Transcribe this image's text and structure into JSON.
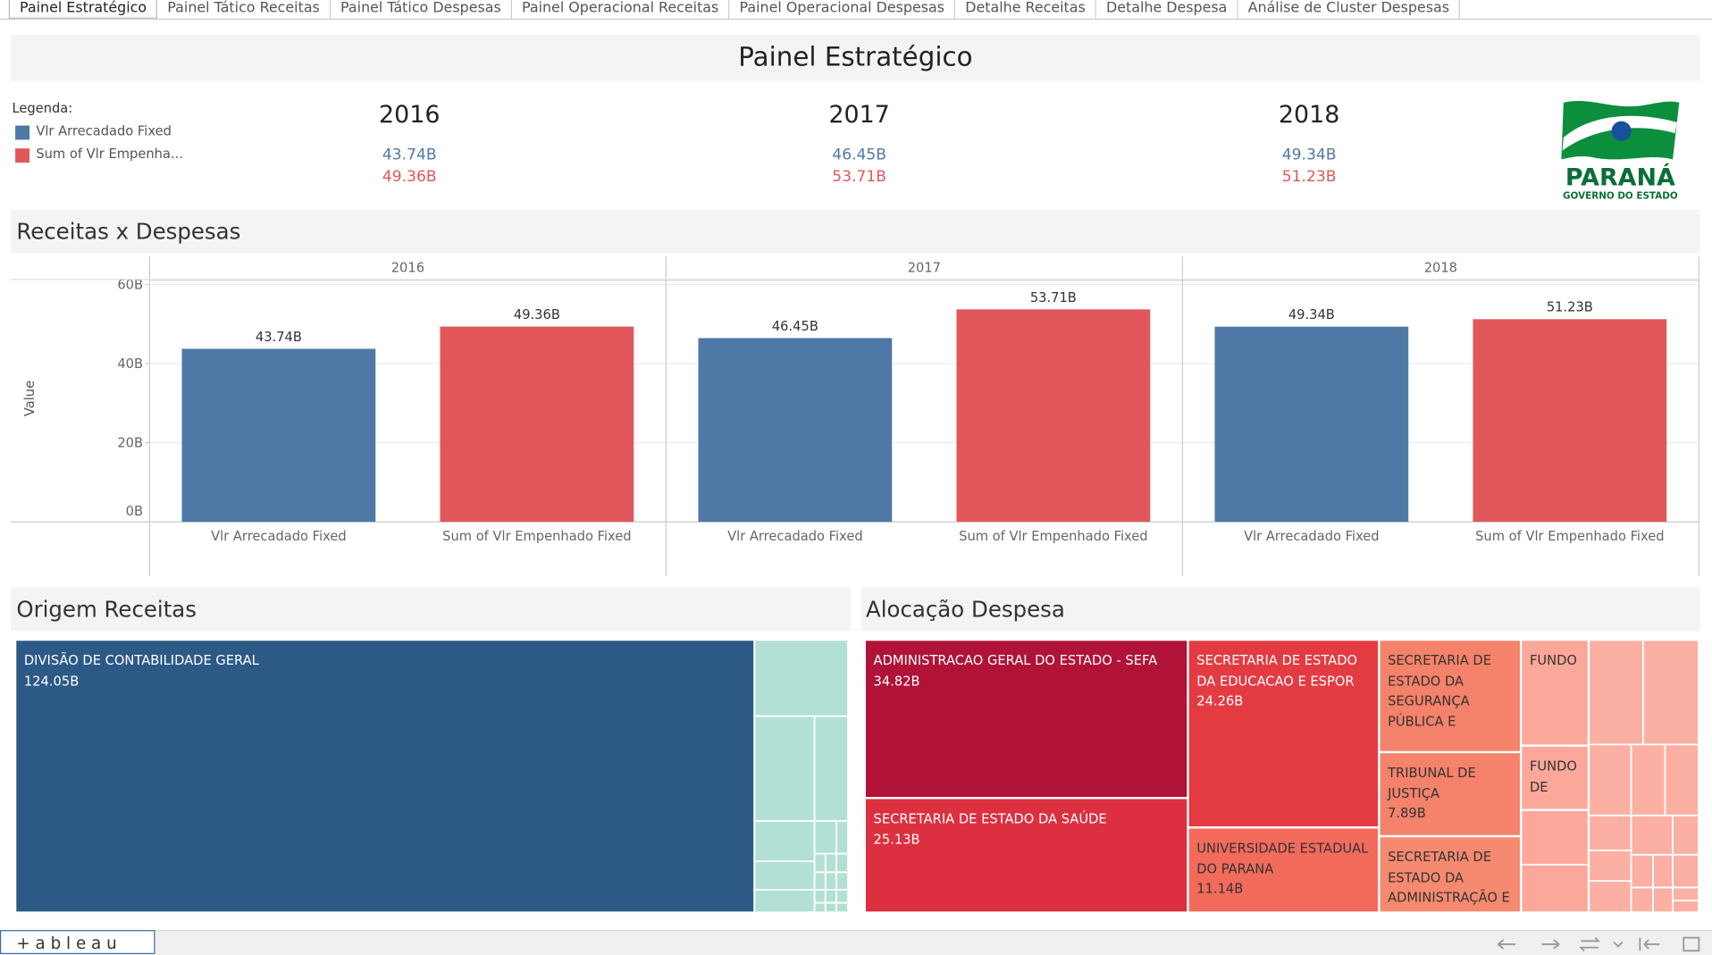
{
  "tabs": [
    "Painel Estratégico",
    "Painel Tático Receitas",
    "Painel Tático Despesas",
    "Painel Operacional Receitas",
    "Painel Operacional Despesas",
    "Detalhe Receitas",
    "Detalhe Despesa",
    "Análise de Cluster Despesas"
  ],
  "header": {
    "title": "Painel Estratégico"
  },
  "legend": {
    "title": "Legenda:",
    "items": [
      {
        "name": "Vlr Arrecadado Fixed",
        "color": "#4e79a7"
      },
      {
        "name": "Sum of Vlr Empenha...",
        "color": "#e15759"
      }
    ]
  },
  "logo": {
    "name": "PARANÁ",
    "subtitle": "GOVERNO DO ESTADO"
  },
  "chart_data": {
    "type": "bar",
    "title": "Receitas x Despesas",
    "y_label": "Value",
    "categories": [
      "2016",
      "2017",
      "2018"
    ],
    "series": [
      {
        "name": "Vlr Arrecadado Fixed",
        "color": "#4e79a7",
        "values": [
          43.74,
          46.45,
          49.34
        ],
        "value_labels": [
          "43.74B",
          "46.45B",
          "49.34B"
        ]
      },
      {
        "name": "Sum of Vlr Empenhado Fixed",
        "color": "#e15759",
        "values": [
          49.36,
          53.71,
          51.23
        ],
        "value_labels": [
          "49.36B",
          "53.71B",
          "51.23B"
        ]
      }
    ],
    "ylim": [
      0,
      61
    ],
    "yticks": [
      {
        "value": 0,
        "label": "0B"
      },
      {
        "value": 20,
        "label": "20B"
      },
      {
        "value": 40,
        "label": "40B"
      },
      {
        "value": 60,
        "label": "60B"
      }
    ],
    "grid": true
  },
  "origem": {
    "title": "Origem Receitas",
    "nodes": [
      {
        "label": "DIVISÃO DE CONTABILIDADE GERAL",
        "value": "124.05B"
      }
    ]
  },
  "alocacao": {
    "title": "Alocação Despesa",
    "nodes": [
      {
        "label": "ADMINISTRACAO GERAL DO ESTADO - SEFA",
        "value": "34.82B"
      },
      {
        "label": "SECRETARIA DE ESTADO DA SAÚDE",
        "value": "25.13B"
      },
      {
        "label": "SECRETARIA DE ESTADO DA EDUCACAO E ESPOR",
        "value": "24.26B"
      },
      {
        "label": "UNIVERSIDADE ESTADUAL DO PARANA",
        "value": "11.14B"
      },
      {
        "label": "SECRETARIA DE ESTADO DA SEGURANÇA PÚBLICA E"
      },
      {
        "label": "TRIBUNAL DE JUSTIÇA",
        "value": "7.89B"
      },
      {
        "label": "SECRETARIA DE ESTADO DA ADMINISTRAÇÃO E"
      },
      {
        "label": "FUNDO"
      },
      {
        "label": "FUNDO DE"
      }
    ]
  },
  "footer": {
    "brand": "+ a b l e a u"
  }
}
